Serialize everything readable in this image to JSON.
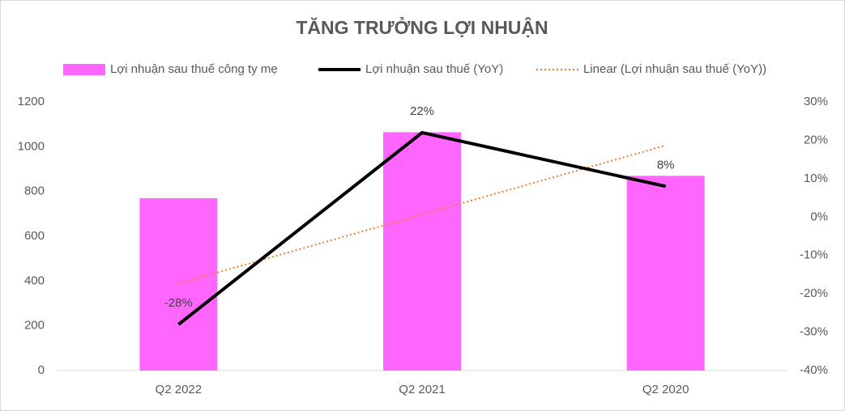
{
  "chart_data": {
    "type": "combo",
    "title": "TĂNG TRƯỞNG LỢI NHUẬN",
    "categories": [
      "Q2 2022",
      "Q2 2021",
      "Q2 2020"
    ],
    "series": [
      {
        "name": "Lợi nhuận sau thuế công ty mẹ",
        "type": "bar",
        "color": "#ff66ff",
        "values": [
          770,
          1065,
          870
        ]
      },
      {
        "name": "Lợi nhuận sau thuế (YoY)",
        "type": "line",
        "axis": "y2",
        "color": "#000000",
        "values": [
          -28,
          22,
          8
        ],
        "value_labels": [
          "-28%",
          "22%",
          "8%"
        ]
      },
      {
        "name": "Linear (Lợi nhuận sau thuế (YoY))",
        "type": "trend",
        "axis": "y2",
        "color": "#ed7d31",
        "values": [
          -17.33,
          0.67,
          18.67
        ]
      }
    ],
    "ylim": [
      0,
      1200
    ],
    "yticks": [
      0,
      200,
      400,
      600,
      800,
      1000,
      1200
    ],
    "y2lim": [
      -40,
      30
    ],
    "y2ticks": [
      {
        "value": -40,
        "label": "-40%"
      },
      {
        "value": -30,
        "label": "-30%"
      },
      {
        "value": -20,
        "label": "-20%"
      },
      {
        "value": -10,
        "label": "-10%"
      },
      {
        "value": 0,
        "label": "0%"
      },
      {
        "value": 10,
        "label": "10%"
      },
      {
        "value": 20,
        "label": "20%"
      },
      {
        "value": 30,
        "label": "30%"
      }
    ],
    "legend": "top"
  }
}
